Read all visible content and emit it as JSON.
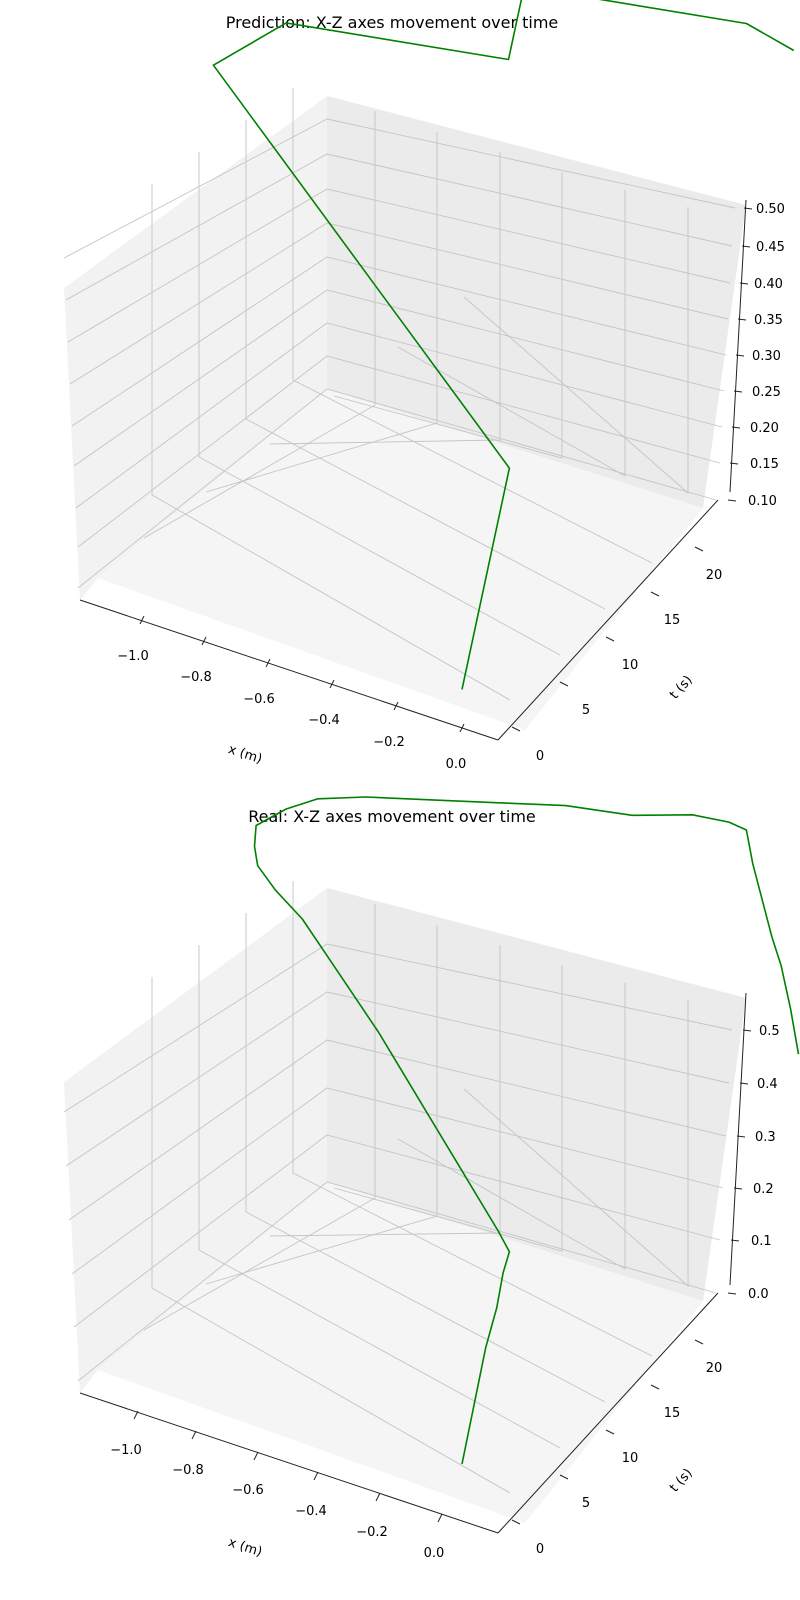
{
  "chart_data": [
    {
      "type": "line",
      "projection": "3d",
      "title": "Prediction: X-Z axes movement over time",
      "xlabel": "x (m)",
      "ylabel": "t (s)",
      "zlabel": "",
      "grid": true,
      "xlim": [
        -1.12,
        0.06
      ],
      "ylim": [
        -1.2,
        23.3
      ],
      "zlim": [
        0.08,
        0.51
      ],
      "xticks": [
        "−1.0",
        "−0.8",
        "−0.6",
        "−0.4",
        "−0.2",
        "0.0"
      ],
      "yticks": [
        "0",
        "5",
        "10",
        "15",
        "20"
      ],
      "zticks": [
        "0.10",
        "0.15",
        "0.20",
        "0.25",
        "0.30",
        "0.35",
        "0.40",
        "0.45",
        "0.50"
      ],
      "series": [
        {
          "color": "#008000",
          "x": [
            0.0,
            0.0,
            -1.08,
            -1.0,
            -0.45,
            -0.55,
            0.0,
            0.0
          ],
          "t": [
            0.0,
            3.0,
            6.0,
            9.0,
            12.0,
            15.0,
            18.0,
            21.0
          ],
          "z": [
            0.1,
            0.3,
            0.5,
            0.5,
            0.5,
            0.5,
            0.5,
            0.4
          ]
        }
      ]
    },
    {
      "type": "line",
      "projection": "3d",
      "title": "Real: X-Z axes movement over time",
      "xlabel": "x (m)",
      "ylabel": "t (s)",
      "zlabel": "",
      "grid": true,
      "xlim": [
        -1.12,
        0.06
      ],
      "ylim": [
        -1.2,
        23.3
      ],
      "zlim": [
        0.0,
        0.55
      ],
      "xticks": [
        "−1.0",
        "−0.8",
        "−0.6",
        "−0.4",
        "−0.2",
        "0.0"
      ],
      "yticks": [
        "0",
        "5",
        "10",
        "15",
        "20"
      ],
      "zticks": [
        "0.0",
        "0.1",
        "0.2",
        "0.3",
        "0.4",
        "0.5"
      ],
      "series": [
        {
          "color": "#008000",
          "x": [
            0.0,
            0.0,
            0.0,
            0.0,
            0.0,
            -0.05,
            -0.15,
            -0.25,
            -0.35,
            -0.45,
            -0.55,
            -0.65,
            -0.75,
            -0.85,
            -0.95,
            -1.02,
            -1.05,
            -1.06,
            -1.0,
            -0.95,
            -0.85,
            -0.7,
            -0.55,
            -0.4,
            -0.25,
            -0.12,
            -0.04,
            0.0,
            0.0,
            0.0,
            0.0,
            0.0,
            0.0,
            0.0
          ],
          "t": [
            0.0,
            1.5,
            2.2,
            2.6,
            3.0,
            3.3,
            3.8,
            4.3,
            4.8,
            5.3,
            5.8,
            6.2,
            6.6,
            7.0,
            7.3,
            7.6,
            8.0,
            8.3,
            9.0,
            10.0,
            11.0,
            12.2,
            13.4,
            14.6,
            15.8,
            17.0,
            17.7,
            18.0,
            18.4,
            19.0,
            19.6,
            20.2,
            20.8,
            21.3
          ],
          "z": [
            0.05,
            0.18,
            0.22,
            0.26,
            0.28,
            0.29,
            0.31,
            0.33,
            0.35,
            0.37,
            0.39,
            0.41,
            0.43,
            0.45,
            0.46,
            0.47,
            0.48,
            0.5,
            0.52,
            0.52,
            0.52,
            0.52,
            0.52,
            0.52,
            0.51,
            0.51,
            0.5,
            0.49,
            0.43,
            0.36,
            0.29,
            0.23,
            0.15,
            0.07
          ]
        }
      ]
    }
  ]
}
